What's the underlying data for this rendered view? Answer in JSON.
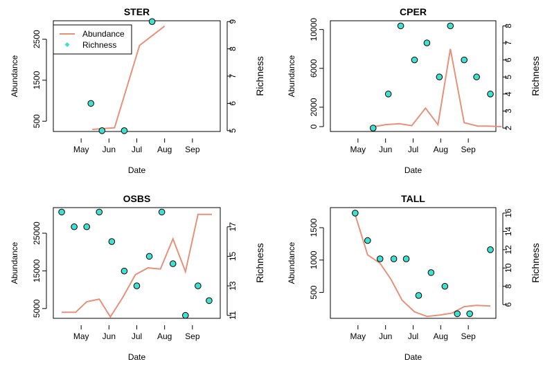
{
  "colors": {
    "line": "#E8907A",
    "point_fill": "#40E0D0",
    "point_stroke": "#000000"
  },
  "legend": {
    "items": [
      "Abundance",
      "Richness"
    ],
    "placement": "top-left",
    "panel": 0
  },
  "chart_data": [
    {
      "type": "line+scatter",
      "title": "STER",
      "xlabel": "Date",
      "ylabel_left": "Abundance",
      "ylabel_right": "Richness",
      "x_ticks": [
        "May",
        "Jun",
        "Jul",
        "Aug",
        "Sep"
      ],
      "y_left_ticks": [
        "500",
        "1500",
        "2500"
      ],
      "y_right_ticks": [
        "5",
        "6",
        "7",
        "8",
        "9"
      ],
      "xlim": [
        0,
        6
      ],
      "y_left_lim": [
        250,
        2950
      ],
      "y_right_lim": [
        4.97,
        9.03
      ],
      "abundance": {
        "x": [
          1.4,
          2.2,
          3.1,
          4.0
        ],
        "y": [
          300,
          340,
          2350,
          2820
        ]
      },
      "richness": {
        "x": [
          1.35,
          1.75,
          2.55,
          3.55
        ],
        "y": [
          6,
          5,
          5,
          9
        ]
      }
    },
    {
      "type": "line+scatter",
      "title": "CPER",
      "xlabel": "Date",
      "ylabel_left": "Abundance",
      "ylabel_right": "Richness",
      "x_ticks": [
        "May",
        "Jun",
        "Jul",
        "Aug",
        "Sep"
      ],
      "y_left_ticks": [
        "0",
        "2000",
        "6000",
        "10000"
      ],
      "y_right_ticks": [
        "2",
        "3",
        "4",
        "5",
        "6",
        "7",
        "8"
      ],
      "xlim": [
        0,
        6
      ],
      "y_left_lim": [
        -500,
        10900
      ],
      "y_right_lim": [
        1.8,
        8.3
      ],
      "abundance": {
        "x": [
          1.6,
          2.0,
          2.5,
          2.95,
          3.45,
          3.9,
          4.35,
          4.85,
          5.35,
          5.75,
          6.2
        ],
        "y": [
          0,
          200,
          300,
          100,
          1900,
          200,
          8000,
          400,
          50,
          50,
          0
        ]
      },
      "richness": {
        "x": [
          1.55,
          2.1,
          2.55,
          3.05,
          3.5,
          3.95,
          4.35,
          4.85,
          5.3,
          5.8
        ],
        "y": [
          2,
          4,
          8,
          6,
          7,
          5,
          8,
          6,
          5,
          4
        ]
      }
    },
    {
      "type": "line+scatter",
      "title": "OSBS",
      "xlabel": "Date",
      "ylabel_left": "Abundance",
      "ylabel_right": "Richness",
      "x_ticks": [
        "May",
        "Jun",
        "Jul",
        "Aug",
        "Sep"
      ],
      "y_left_ticks": [
        "5000",
        "15000",
        "25000"
      ],
      "y_right_ticks": [
        "11",
        "13",
        "15",
        "17"
      ],
      "xlim": [
        0,
        6
      ],
      "y_left_lim": [
        2400,
        31800
      ],
      "y_right_lim": [
        10.8,
        18.3
      ],
      "abundance": {
        "x": [
          0.3,
          0.8,
          1.2,
          1.65,
          2.05,
          2.5,
          2.95,
          3.4,
          3.85,
          4.3,
          4.75,
          5.2,
          5.7
        ],
        "y": [
          4000,
          4000,
          6800,
          7500,
          2800,
          8000,
          14000,
          15800,
          15500,
          23500,
          14800,
          30000,
          30000
        ]
      },
      "richness": {
        "x": [
          0.3,
          0.75,
          1.2,
          1.65,
          2.1,
          2.55,
          3.0,
          3.45,
          3.9,
          4.3,
          4.75,
          5.2,
          5.6
        ],
        "y": [
          18,
          17,
          17,
          18,
          16,
          14,
          13,
          15,
          18,
          14.5,
          11,
          13,
          12
        ]
      }
    },
    {
      "type": "line+scatter",
      "title": "TALL",
      "xlabel": "Date",
      "ylabel_left": "Abundance",
      "ylabel_right": "Richness",
      "x_ticks": [
        "May",
        "Jun",
        "Jul",
        "Aug",
        "Sep"
      ],
      "y_left_ticks": [
        "500",
        "1000",
        "1500"
      ],
      "y_right_ticks": [
        "6",
        "8",
        "10",
        "12",
        "14",
        "16"
      ],
      "xlim": [
        0,
        6
      ],
      "y_left_lim": [
        100,
        1810
      ],
      "y_right_lim": [
        4.5,
        16.6
      ],
      "abundance": {
        "x": [
          0.9,
          1.35,
          1.8,
          2.2,
          2.6,
          3.05,
          3.5,
          3.95,
          4.4,
          4.85,
          5.3,
          5.8
        ],
        "y": [
          1700,
          1080,
          950,
          700,
          380,
          200,
          130,
          150,
          180,
          280,
          300,
          290
        ]
      },
      "richness": {
        "x": [
          0.9,
          1.35,
          1.8,
          2.3,
          2.75,
          3.2,
          3.65,
          4.15,
          4.6,
          5.05,
          5.8
        ],
        "y": [
          16,
          13,
          11,
          11,
          11,
          7,
          9.5,
          8,
          5,
          5,
          12
        ]
      }
    }
  ]
}
